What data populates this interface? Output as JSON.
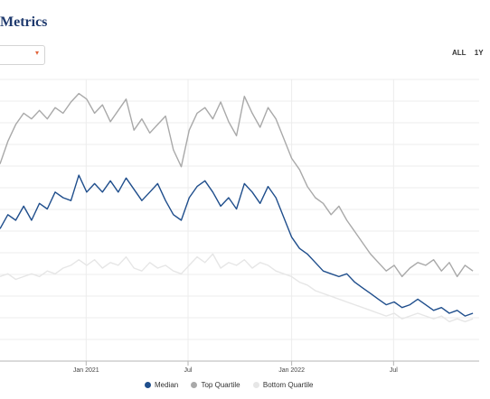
{
  "header": {
    "title": "Metrics"
  },
  "filter": {
    "dropdown_caret": "▾"
  },
  "range_buttons": [
    "ALL",
    "1Y"
  ],
  "legend": [
    {
      "label": "Median",
      "color": "#1f4e8c"
    },
    {
      "label": "Top Quartile",
      "color": "#a9a9a9"
    },
    {
      "label": "Bottom Quartile",
      "color": "#e6e6e6"
    }
  ],
  "chart_data": {
    "type": "line",
    "title": "",
    "xlabel": "",
    "ylabel": "",
    "x_tick_labels": [
      "Jan 2021",
      "Jul",
      "Jan 2022",
      "Jul"
    ],
    "grid": true,
    "legend_position": "bottom",
    "x_domain": [
      "2020-08-01",
      "2022-11-30"
    ],
    "y_range": [
      0,
      100
    ],
    "series": [
      {
        "name": "Top Quartile",
        "color": "#a9a9a9",
        "points": [
          [
            "2020-08-01",
            70
          ],
          [
            "2020-08-15",
            78
          ],
          [
            "2020-08-29",
            84
          ],
          [
            "2020-09-12",
            88
          ],
          [
            "2020-09-26",
            86
          ],
          [
            "2020-10-10",
            89
          ],
          [
            "2020-10-24",
            86
          ],
          [
            "2020-11-07",
            90
          ],
          [
            "2020-11-21",
            88
          ],
          [
            "2020-12-05",
            92
          ],
          [
            "2020-12-19",
            95
          ],
          [
            "2021-01-02",
            93
          ],
          [
            "2021-01-16",
            88
          ],
          [
            "2021-01-30",
            91
          ],
          [
            "2021-02-13",
            85
          ],
          [
            "2021-02-27",
            89
          ],
          [
            "2021-03-13",
            93
          ],
          [
            "2021-03-27",
            82
          ],
          [
            "2021-04-10",
            86
          ],
          [
            "2021-04-24",
            81
          ],
          [
            "2021-05-08",
            84
          ],
          [
            "2021-05-22",
            87
          ],
          [
            "2021-06-05",
            75
          ],
          [
            "2021-06-19",
            69
          ],
          [
            "2021-07-03",
            82
          ],
          [
            "2021-07-17",
            88
          ],
          [
            "2021-07-31",
            90
          ],
          [
            "2021-08-14",
            86
          ],
          [
            "2021-08-28",
            92
          ],
          [
            "2021-09-11",
            85
          ],
          [
            "2021-09-25",
            80
          ],
          [
            "2021-10-09",
            94
          ],
          [
            "2021-10-23",
            88
          ],
          [
            "2021-11-06",
            83
          ],
          [
            "2021-11-20",
            90
          ],
          [
            "2021-12-04",
            86
          ],
          [
            "2021-12-18",
            79
          ],
          [
            "2022-01-01",
            72
          ],
          [
            "2022-01-15",
            68
          ],
          [
            "2022-01-29",
            62
          ],
          [
            "2022-02-12",
            58
          ],
          [
            "2022-02-26",
            56
          ],
          [
            "2022-03-12",
            52
          ],
          [
            "2022-03-26",
            55
          ],
          [
            "2022-04-09",
            50
          ],
          [
            "2022-04-23",
            46
          ],
          [
            "2022-05-07",
            42
          ],
          [
            "2022-05-21",
            38
          ],
          [
            "2022-06-04",
            35
          ],
          [
            "2022-06-18",
            32
          ],
          [
            "2022-07-02",
            34
          ],
          [
            "2022-07-16",
            30
          ],
          [
            "2022-07-30",
            33
          ],
          [
            "2022-08-13",
            35
          ],
          [
            "2022-08-27",
            34
          ],
          [
            "2022-09-10",
            36
          ],
          [
            "2022-09-24",
            32
          ],
          [
            "2022-10-08",
            35
          ],
          [
            "2022-10-22",
            30
          ],
          [
            "2022-11-05",
            34
          ],
          [
            "2022-11-19",
            32
          ]
        ]
      },
      {
        "name": "Median",
        "color": "#1f4e8c",
        "points": [
          [
            "2020-08-01",
            47
          ],
          [
            "2020-08-15",
            52
          ],
          [
            "2020-08-29",
            50
          ],
          [
            "2020-09-12",
            55
          ],
          [
            "2020-09-26",
            50
          ],
          [
            "2020-10-10",
            56
          ],
          [
            "2020-10-24",
            54
          ],
          [
            "2020-11-07",
            60
          ],
          [
            "2020-11-21",
            58
          ],
          [
            "2020-12-05",
            57
          ],
          [
            "2020-12-19",
            66
          ],
          [
            "2021-01-02",
            60
          ],
          [
            "2021-01-16",
            63
          ],
          [
            "2021-01-30",
            60
          ],
          [
            "2021-02-13",
            64
          ],
          [
            "2021-02-27",
            60
          ],
          [
            "2021-03-13",
            65
          ],
          [
            "2021-03-27",
            61
          ],
          [
            "2021-04-10",
            57
          ],
          [
            "2021-04-24",
            60
          ],
          [
            "2021-05-08",
            63
          ],
          [
            "2021-05-22",
            57
          ],
          [
            "2021-06-05",
            52
          ],
          [
            "2021-06-19",
            50
          ],
          [
            "2021-07-03",
            58
          ],
          [
            "2021-07-17",
            62
          ],
          [
            "2021-07-31",
            64
          ],
          [
            "2021-08-14",
            60
          ],
          [
            "2021-08-28",
            55
          ],
          [
            "2021-09-11",
            58
          ],
          [
            "2021-09-25",
            54
          ],
          [
            "2021-10-09",
            63
          ],
          [
            "2021-10-23",
            60
          ],
          [
            "2021-11-06",
            56
          ],
          [
            "2021-11-20",
            62
          ],
          [
            "2021-12-04",
            58
          ],
          [
            "2021-12-18",
            51
          ],
          [
            "2022-01-01",
            44
          ],
          [
            "2022-01-15",
            40
          ],
          [
            "2022-01-29",
            38
          ],
          [
            "2022-02-12",
            35
          ],
          [
            "2022-02-26",
            32
          ],
          [
            "2022-03-12",
            31
          ],
          [
            "2022-03-26",
            30
          ],
          [
            "2022-04-09",
            31
          ],
          [
            "2022-04-23",
            28
          ],
          [
            "2022-05-07",
            26
          ],
          [
            "2022-05-21",
            24
          ],
          [
            "2022-06-04",
            22
          ],
          [
            "2022-06-18",
            20
          ],
          [
            "2022-07-02",
            21
          ],
          [
            "2022-07-16",
            19
          ],
          [
            "2022-07-30",
            20
          ],
          [
            "2022-08-13",
            22
          ],
          [
            "2022-08-27",
            20
          ],
          [
            "2022-09-10",
            18
          ],
          [
            "2022-09-24",
            19
          ],
          [
            "2022-10-08",
            17
          ],
          [
            "2022-10-22",
            18
          ],
          [
            "2022-11-05",
            16
          ],
          [
            "2022-11-19",
            17
          ]
        ]
      },
      {
        "name": "Bottom Quartile",
        "color": "#e6e6e6",
        "points": [
          [
            "2020-08-01",
            30
          ],
          [
            "2020-08-15",
            31
          ],
          [
            "2020-08-29",
            29
          ],
          [
            "2020-09-12",
            30
          ],
          [
            "2020-09-26",
            31
          ],
          [
            "2020-10-10",
            30
          ],
          [
            "2020-10-24",
            32
          ],
          [
            "2020-11-07",
            31
          ],
          [
            "2020-11-21",
            33
          ],
          [
            "2020-12-05",
            34
          ],
          [
            "2020-12-19",
            36
          ],
          [
            "2021-01-02",
            34
          ],
          [
            "2021-01-16",
            36
          ],
          [
            "2021-01-30",
            33
          ],
          [
            "2021-02-13",
            35
          ],
          [
            "2021-02-27",
            34
          ],
          [
            "2021-03-13",
            37
          ],
          [
            "2021-03-27",
            33
          ],
          [
            "2021-04-10",
            32
          ],
          [
            "2021-04-24",
            35
          ],
          [
            "2021-05-08",
            33
          ],
          [
            "2021-05-22",
            34
          ],
          [
            "2021-06-05",
            32
          ],
          [
            "2021-06-19",
            31
          ],
          [
            "2021-07-03",
            34
          ],
          [
            "2021-07-17",
            37
          ],
          [
            "2021-07-31",
            35
          ],
          [
            "2021-08-14",
            38
          ],
          [
            "2021-08-28",
            33
          ],
          [
            "2021-09-11",
            35
          ],
          [
            "2021-09-25",
            34
          ],
          [
            "2021-10-09",
            36
          ],
          [
            "2021-10-23",
            33
          ],
          [
            "2021-11-06",
            35
          ],
          [
            "2021-11-20",
            34
          ],
          [
            "2021-12-04",
            32
          ],
          [
            "2021-12-18",
            31
          ],
          [
            "2022-01-01",
            30
          ],
          [
            "2022-01-15",
            28
          ],
          [
            "2022-01-29",
            27
          ],
          [
            "2022-02-12",
            25
          ],
          [
            "2022-02-26",
            24
          ],
          [
            "2022-03-12",
            23
          ],
          [
            "2022-03-26",
            22
          ],
          [
            "2022-04-09",
            21
          ],
          [
            "2022-04-23",
            20
          ],
          [
            "2022-05-07",
            19
          ],
          [
            "2022-05-21",
            18
          ],
          [
            "2022-06-04",
            17
          ],
          [
            "2022-06-18",
            16
          ],
          [
            "2022-07-02",
            17
          ],
          [
            "2022-07-16",
            15
          ],
          [
            "2022-07-30",
            16
          ],
          [
            "2022-08-13",
            17
          ],
          [
            "2022-08-27",
            16
          ],
          [
            "2022-09-10",
            15
          ],
          [
            "2022-09-24",
            16
          ],
          [
            "2022-10-08",
            14
          ],
          [
            "2022-10-22",
            15
          ],
          [
            "2022-11-05",
            14
          ],
          [
            "2022-11-19",
            15
          ]
        ]
      }
    ]
  }
}
